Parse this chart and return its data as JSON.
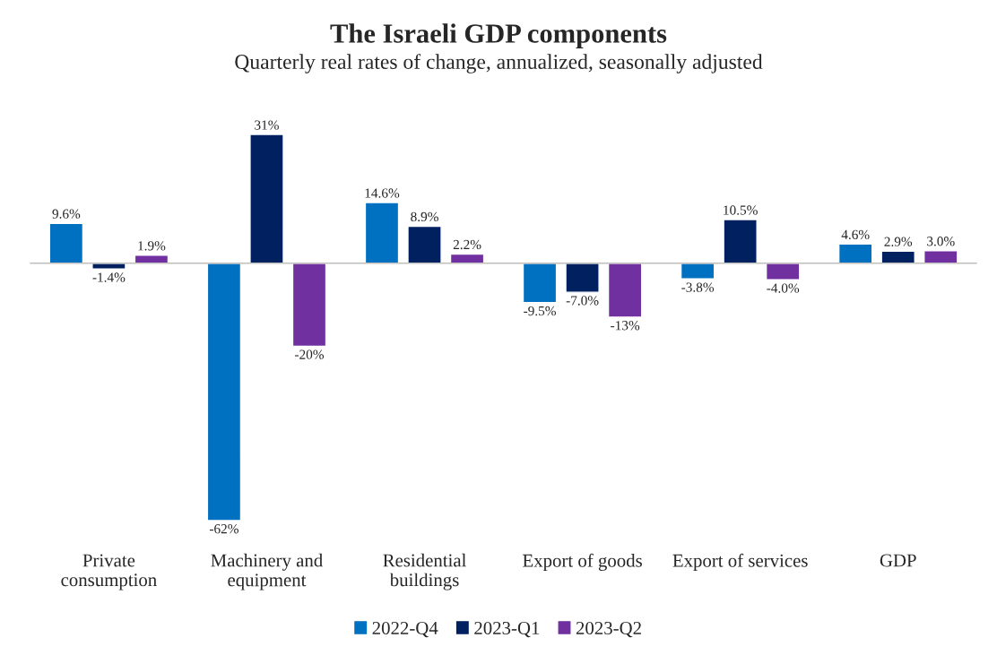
{
  "chart_data": {
    "type": "bar",
    "title": "The Israeli GDP components",
    "subtitle": "Quarterly real rates of change, annualized, seasonally adjusted",
    "categories": [
      "Private\nconsumption",
      "Machinery and\nequipment",
      "Residential\nbuildings",
      "Export of goods",
      "Export of services",
      "GDP"
    ],
    "series": [
      {
        "name": "2022-Q4",
        "color": "#0070c0",
        "values": [
          9.6,
          -62,
          14.6,
          -9.5,
          -3.8,
          4.6
        ],
        "value_labels": [
          "9.6%",
          "-62%",
          "14.6%",
          "-9.5%",
          "-3.8%",
          "4.6%"
        ]
      },
      {
        "name": "2023-Q1",
        "color": "#002060",
        "values": [
          -1.4,
          31,
          8.9,
          -7.0,
          10.5,
          2.9
        ],
        "value_labels": [
          "-1.4%",
          "31%",
          "8.9%",
          "-7.0%",
          "10.5%",
          "2.9%"
        ]
      },
      {
        "name": "2023-Q2",
        "color": "#7030a0",
        "values": [
          1.9,
          -20,
          2.2,
          -13,
          -4.0,
          3.0
        ],
        "value_labels": [
          "1.9%",
          "-20%",
          "2.2%",
          "-13%",
          "-4.0%",
          "3.0%"
        ]
      }
    ],
    "tick_labels": "x",
    "grid": false,
    "legend": "bottom"
  }
}
